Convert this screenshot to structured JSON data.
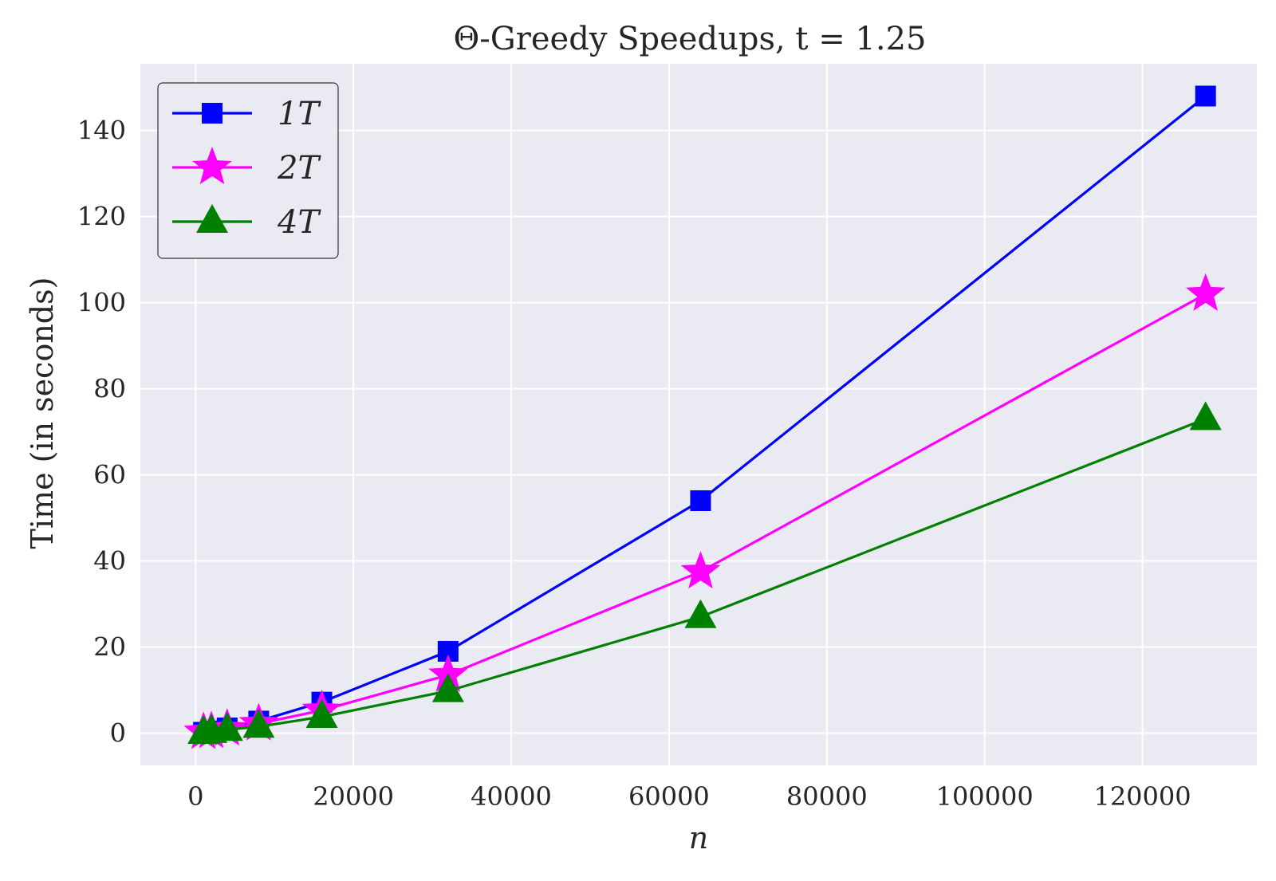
{
  "chart_data": {
    "type": "line",
    "title": "Θ-Greedy Speedups, t = 1.25",
    "xlabel": "n",
    "ylabel": "Time (in seconds)",
    "xlim": [
      -7000,
      134500
    ],
    "ylim": [
      -7.5,
      155.5
    ],
    "x_ticks": [
      0,
      20000,
      40000,
      60000,
      80000,
      100000,
      120000
    ],
    "y_ticks": [
      0,
      20,
      40,
      60,
      80,
      100,
      120,
      140
    ],
    "grid": true,
    "legend_position": "top-left",
    "background_color": "#eaeaf2",
    "grid_color": "#ffffff",
    "x": [
      1000,
      2000,
      4000,
      8000,
      16000,
      32000,
      64000,
      128000
    ],
    "series": [
      {
        "name": "1T",
        "color": "#0000ff",
        "marker": "square",
        "values": [
          0.2,
          0.5,
          1.2,
          2.8,
          7.2,
          19.0,
          54.0,
          148.0
        ]
      },
      {
        "name": "2T",
        "color": "#ff00ff",
        "marker": "star",
        "values": [
          0.2,
          0.4,
          1.0,
          2.2,
          5.3,
          13.5,
          37.5,
          102.0
        ]
      },
      {
        "name": "4T",
        "color": "#008000",
        "marker": "triangle",
        "values": [
          0.1,
          0.3,
          0.8,
          1.5,
          3.8,
          9.8,
          27.0,
          73.0
        ]
      }
    ]
  }
}
